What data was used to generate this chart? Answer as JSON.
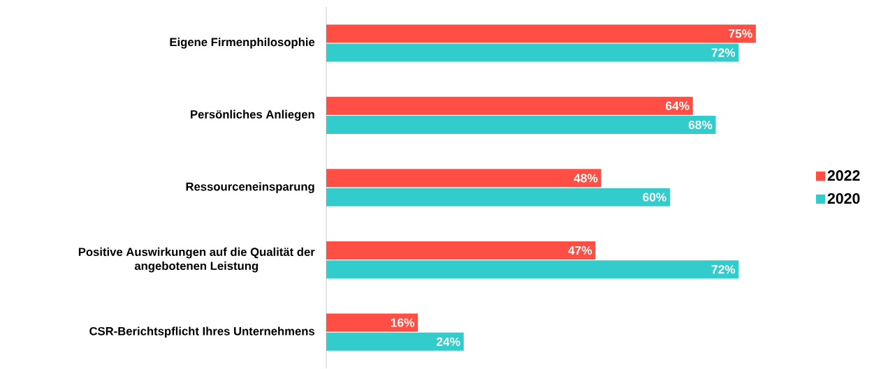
{
  "chart_data": {
    "type": "bar",
    "orientation": "horizontal",
    "categories": [
      "Eigene Firmenphilosophie",
      "Persönliches Anliegen",
      "Ressourceneinsparung",
      "Positive Auswirkungen auf die Qualität der angebotenen Leistung",
      "CSR-Berichtspflicht Ihres Unternehmens"
    ],
    "series": [
      {
        "name": "2022",
        "color": "#ff4f45",
        "values": [
          75,
          64,
          48,
          47,
          16
        ],
        "value_labels": [
          "75%",
          "64%",
          "48%",
          "47%",
          "16%"
        ]
      },
      {
        "name": "2020",
        "color": "#33cccc",
        "values": [
          72,
          68,
          60,
          72,
          24
        ],
        "value_labels": [
          "72%",
          "68%",
          "60%",
          "72%",
          "24%"
        ]
      }
    ],
    "legend": "right"
  }
}
